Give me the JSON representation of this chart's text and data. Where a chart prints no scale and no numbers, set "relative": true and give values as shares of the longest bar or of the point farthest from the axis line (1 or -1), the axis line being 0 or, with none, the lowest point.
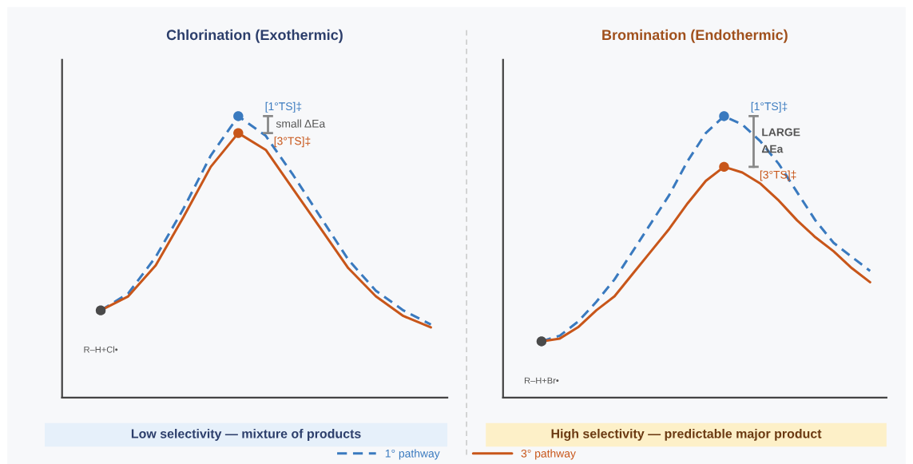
{
  "chart_data": [
    {
      "type": "line",
      "title": "Chlorination (Exothermic)",
      "relative": true,
      "categories": [
        null,
        null,
        null,
        null,
        null,
        null,
        null,
        null,
        null,
        null,
        null,
        null,
        null
      ],
      "legend": "bottom",
      "series": [
        {
          "name": "1° pathway",
          "color": "#3a7abf",
          "line_style": "dashed",
          "values": [
            0.31,
            0.37,
            0.5,
            0.67,
            0.86,
            1.0,
            0.93,
            0.79,
            0.64,
            0.49,
            0.38,
            0.31,
            0.26
          ]
        },
        {
          "name": "3° pathway",
          "color": "#c8561a",
          "line_style": "solid",
          "values": [
            0.31,
            0.36,
            0.47,
            0.64,
            0.82,
            0.94,
            0.88,
            0.74,
            0.6,
            0.46,
            0.36,
            0.29,
            0.25
          ]
        }
      ],
      "annotations": [
        "[1°TS]‡",
        "[3°TS]‡",
        "R–H+Cl•",
        "small ΔEa",
        "Low selectivity — mixture of products"
      ]
    },
    {
      "type": "line",
      "title": "Bromination (Endothermic)",
      "relative": true,
      "categories": [
        null,
        null,
        null,
        null,
        null,
        null,
        null,
        null,
        null,
        null,
        null,
        null,
        null,
        null,
        null,
        null,
        null,
        null,
        null
      ],
      "series": [
        {
          "color": "#3a7abf",
          "line_style": "dashed",
          "values": [
            0.2,
            0.22,
            0.27,
            0.34,
            0.42,
            0.52,
            0.62,
            0.72,
            0.84,
            0.94,
            1.0,
            0.97,
            0.91,
            0.83,
            0.73,
            0.63,
            0.55,
            0.5,
            0.45
          ]
        },
        {
          "color": "#c8561a",
          "line_style": "solid",
          "values": [
            0.2,
            0.21,
            0.25,
            0.31,
            0.36,
            0.44,
            0.52,
            0.6,
            0.69,
            0.77,
            0.82,
            0.8,
            0.76,
            0.7,
            0.63,
            0.57,
            0.52,
            0.46,
            0.41
          ]
        }
      ],
      "annotations": [
        "[1°TS]‡",
        "[3°TS]‡",
        "R–H+Br•",
        "LARGE\nΔEa",
        "High selectivity — predictable major product"
      ]
    }
  ]
}
